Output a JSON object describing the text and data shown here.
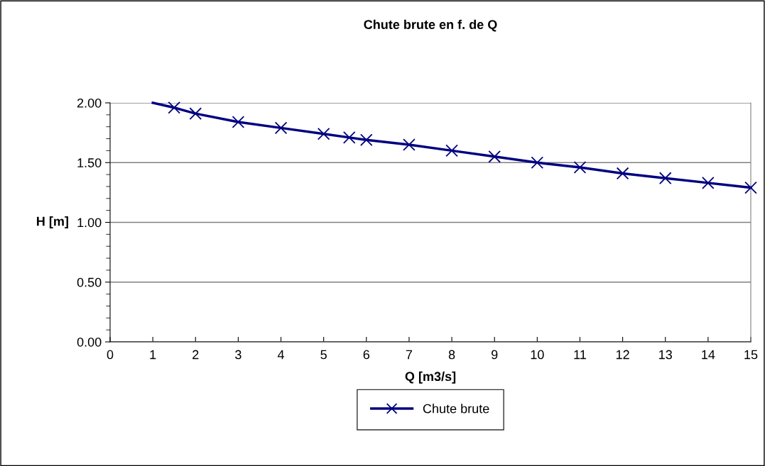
{
  "chart_data": {
    "type": "line",
    "title": "Chute brute en f. de Q",
    "xlabel": "Q [m3/s]",
    "ylabel": "H [m]",
    "xlim": [
      0,
      15
    ],
    "xticks": [
      0,
      1,
      2,
      3,
      4,
      5,
      6,
      7,
      8,
      9,
      10,
      11,
      12,
      13,
      14,
      15
    ],
    "ylim": [
      0,
      2
    ],
    "yticks": [
      {
        "value": 0,
        "label": "0.00"
      },
      {
        "value": 0.5,
        "label": "0.50"
      },
      {
        "value": 1,
        "label": "1.00"
      },
      {
        "value": 1.5,
        "label": "1.50"
      },
      {
        "value": 2,
        "label": "2.00"
      }
    ],
    "grid": "y",
    "legend": "bottom",
    "series": [
      {
        "name": "Chute brute",
        "color": "#000080",
        "marker": "none",
        "x": [
          1,
          1.5,
          2,
          3,
          4,
          5,
          5.6,
          6,
          7,
          8,
          9,
          10,
          11,
          12,
          13,
          14,
          15
        ],
        "values": [
          2.0,
          1.96,
          1.91,
          1.84,
          1.79,
          1.74,
          1.71,
          1.69,
          1.65,
          1.6,
          1.55,
          1.5,
          1.46,
          1.41,
          1.37,
          1.33,
          1.29
        ]
      },
      {
        "type": "scatter",
        "color": "#000080",
        "marker": "cross",
        "x": [
          1.5,
          2,
          3,
          4,
          5,
          5.6,
          6,
          7,
          8,
          9,
          10,
          11,
          12,
          13,
          14,
          15
        ],
        "values": [
          1.96,
          1.91,
          1.84,
          1.79,
          1.74,
          1.71,
          1.69,
          1.65,
          1.6,
          1.55,
          1.5,
          1.46,
          1.41,
          1.37,
          1.33,
          1.29
        ]
      }
    ]
  }
}
